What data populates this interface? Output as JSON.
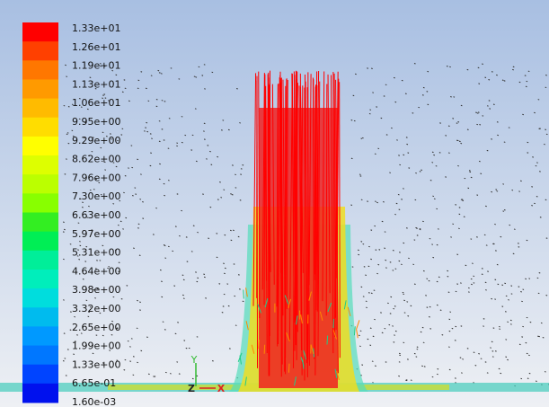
{
  "colorbar": {
    "labels": [
      "1.33e+01",
      "1.26e+01",
      "1.19e+01",
      "1.13e+01",
      "1.06e+01",
      "9.95e+00",
      "9.29e+00",
      "8.62e+00",
      "7.96e+00",
      "7.30e+00",
      "6.63e+00",
      "5.97e+00",
      "5.31e+00",
      "4.64e+00",
      "3.98e+00",
      "3.32e+00",
      "2.65e+00",
      "1.99e+00",
      "1.33e+00",
      "6.65e-01",
      "1.60e-03"
    ],
    "colors": [
      "#ff0000",
      "#ff4000",
      "#ff7700",
      "#ff9a00",
      "#ffbb00",
      "#ffdd00",
      "#ffff00",
      "#ddff00",
      "#bbff00",
      "#88ff00",
      "#33ee22",
      "#00ee55",
      "#00ee99",
      "#00eebb",
      "#00dddd",
      "#00bbee",
      "#0099ff",
      "#0077ff",
      "#0044ff",
      "#0011ee"
    ]
  },
  "triad": {
    "y": "Y",
    "z": "Z",
    "x": "X"
  }
}
